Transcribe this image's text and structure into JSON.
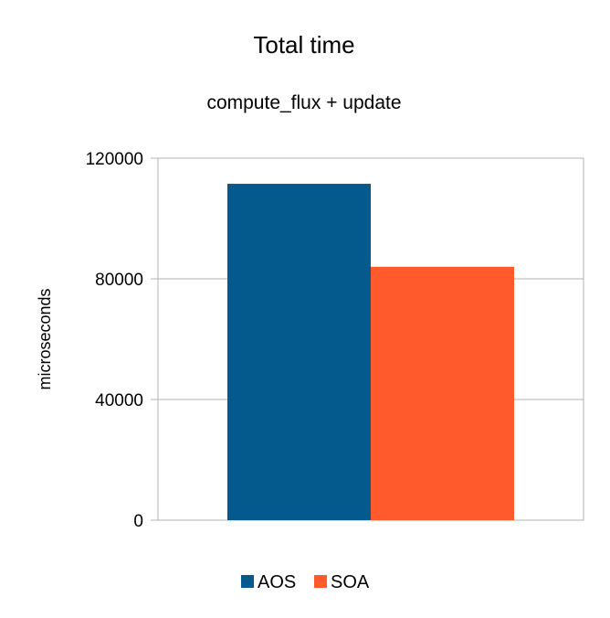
{
  "chart_data": {
    "type": "bar",
    "title": "Total time",
    "subtitle": "compute_flux + update",
    "xlabel": "",
    "ylabel": "microseconds",
    "ylim": [
      0,
      120000
    ],
    "yticks": [
      0,
      40000,
      80000,
      120000
    ],
    "yticks_labels": [
      "0",
      "40000",
      "80000",
      "120000"
    ],
    "grid": true,
    "categories": [
      ""
    ],
    "series": [
      {
        "name": "AOS",
        "values": [
          111500
        ],
        "color": "#045a8d"
      },
      {
        "name": "SOA",
        "values": [
          84000
        ],
        "color": "#ff5a2b"
      }
    ],
    "legend": "bottom"
  }
}
